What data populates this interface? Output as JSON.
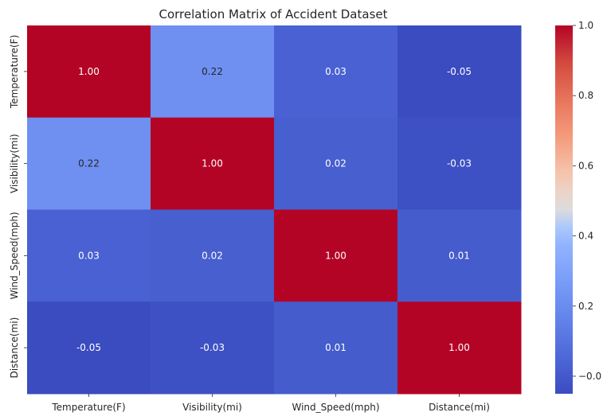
{
  "chart_data": {
    "type": "heatmap",
    "title": "Correlation Matrix of Accident Dataset",
    "xlabel": "",
    "ylabel": "",
    "categories_x": [
      "Temperature(F)",
      "Visibility(mi)",
      "Wind_Speed(mph)",
      "Distance(mi)"
    ],
    "categories_y": [
      "Temperature(F)",
      "Visibility(mi)",
      "Wind_Speed(mph)",
      "Distance(mi)"
    ],
    "values": [
      [
        1.0,
        0.22,
        0.03,
        -0.05
      ],
      [
        0.22,
        1.0,
        0.02,
        -0.03
      ],
      [
        0.03,
        0.02,
        1.0,
        0.01
      ],
      [
        -0.05,
        -0.03,
        0.01,
        1.0
      ]
    ],
    "value_labels": [
      [
        "1.00",
        "0.22",
        "0.03",
        "-0.05"
      ],
      [
        "0.22",
        "1.00",
        "0.02",
        "-0.03"
      ],
      [
        "0.03",
        "0.02",
        "1.00",
        "0.01"
      ],
      [
        "-0.05",
        "-0.03",
        "0.01",
        "1.00"
      ]
    ],
    "colormap": "coolwarm",
    "vmin": -0.05,
    "vmax": 1.0,
    "colorbar_ticks": [
      -0.0,
      0.2,
      0.4,
      0.6,
      0.8,
      1.0
    ],
    "colorbar_tick_labels": [
      "−0.0",
      "0.2",
      "0.4",
      "0.6",
      "0.8",
      "1.0"
    ],
    "grid": false,
    "annotation_colors": {
      "dark_cell": "#ffffff",
      "light_cell": "#262626"
    }
  }
}
